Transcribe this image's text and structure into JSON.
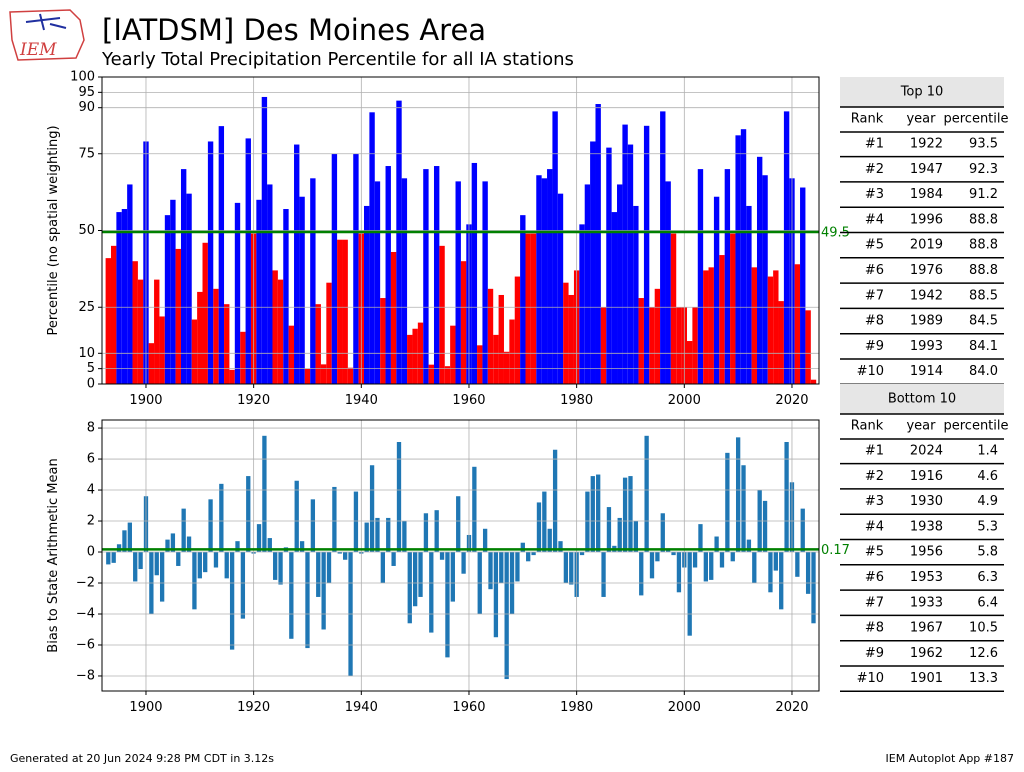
{
  "header": {
    "title": "[IATDSM] Des Moines Area",
    "subtitle": "Yearly Total Precipitation Percentile for all IA stations",
    "logo_text": "IEM"
  },
  "footer": {
    "left": "Generated at 20 Jun 2024 9:28 PM CDT in 3.12s",
    "right": "IEM Autoplot App #187"
  },
  "chart_data": [
    {
      "type": "bar",
      "ylabel": "Percentile (no spatial weighting)",
      "x": [
        1893,
        1894,
        1895,
        1896,
        1897,
        1898,
        1899,
        1900,
        1901,
        1902,
        1903,
        1904,
        1905,
        1906,
        1907,
        1908,
        1909,
        1910,
        1911,
        1912,
        1913,
        1914,
        1915,
        1916,
        1917,
        1918,
        1919,
        1920,
        1921,
        1922,
        1923,
        1924,
        1925,
        1926,
        1927,
        1928,
        1929,
        1930,
        1931,
        1932,
        1933,
        1934,
        1935,
        1936,
        1937,
        1938,
        1939,
        1940,
        1941,
        1942,
        1943,
        1944,
        1945,
        1946,
        1947,
        1948,
        1949,
        1950,
        1951,
        1952,
        1953,
        1954,
        1955,
        1956,
        1957,
        1958,
        1959,
        1960,
        1961,
        1962,
        1963,
        1964,
        1965,
        1966,
        1967,
        1968,
        1969,
        1970,
        1971,
        1972,
        1973,
        1974,
        1975,
        1976,
        1977,
        1978,
        1979,
        1980,
        1981,
        1982,
        1983,
        1984,
        1985,
        1986,
        1987,
        1988,
        1989,
        1990,
        1991,
        1992,
        1993,
        1994,
        1995,
        1996,
        1997,
        1998,
        1999,
        2000,
        2001,
        2002,
        2003,
        2004,
        2005,
        2006,
        2007,
        2008,
        2009,
        2010,
        2011,
        2012,
        2013,
        2014,
        2015,
        2016,
        2017,
        2018,
        2019,
        2020,
        2021,
        2022,
        2023,
        2024
      ],
      "values": [
        41,
        45,
        56,
        57,
        65,
        40,
        34,
        79,
        13.3,
        34,
        22,
        55,
        60,
        44,
        70,
        62,
        21,
        30,
        46,
        79,
        31,
        84.0,
        26,
        4.6,
        59,
        17,
        80,
        49,
        60,
        93.5,
        65,
        37,
        34,
        57,
        19,
        78,
        61,
        4.9,
        67,
        26,
        6.4,
        33,
        75,
        47,
        47,
        5.3,
        75,
        49,
        58,
        88.5,
        66,
        28,
        71,
        43,
        92.3,
        67,
        16,
        18,
        20,
        70,
        6.3,
        71,
        45,
        5.8,
        19,
        66,
        40,
        52,
        72,
        12.6,
        66,
        31,
        16,
        29,
        10.5,
        21,
        35,
        55,
        49,
        49,
        68,
        67,
        70,
        88.8,
        62,
        33,
        29,
        37,
        52,
        65,
        79,
        91.2,
        25,
        77,
        56,
        65,
        84.5,
        78,
        58,
        28,
        84.1,
        25,
        31,
        88.8,
        66,
        49,
        25,
        25,
        14,
        25,
        70,
        37,
        38,
        61,
        42,
        70,
        49,
        81,
        83,
        58,
        38,
        74,
        68,
        35,
        37,
        27,
        88.8,
        67,
        39,
        64,
        24,
        1.4
      ],
      "above_color": "#0000ff",
      "below_color": "#ff0000",
      "mean": 49.5,
      "mean_label": "49.5",
      "mean_color": "#008000",
      "xlim": [
        1891.83,
        2025.02
      ],
      "xticks": [
        1900,
        1920,
        1940,
        1960,
        1980,
        2000,
        2020
      ],
      "ylim": [
        0,
        100
      ],
      "yticks": [
        0,
        5,
        10,
        25,
        50,
        75,
        90,
        95,
        100
      ],
      "grid": true
    },
    {
      "type": "bar",
      "ylabel": "Bias to State Arithmetic Mean",
      "x": [
        1893,
        1894,
        1895,
        1896,
        1897,
        1898,
        1899,
        1900,
        1901,
        1902,
        1903,
        1904,
        1905,
        1906,
        1907,
        1908,
        1909,
        1910,
        1911,
        1912,
        1913,
        1914,
        1915,
        1916,
        1917,
        1918,
        1919,
        1920,
        1921,
        1922,
        1923,
        1924,
        1925,
        1926,
        1927,
        1928,
        1929,
        1930,
        1931,
        1932,
        1933,
        1934,
        1935,
        1936,
        1937,
        1938,
        1939,
        1940,
        1941,
        1942,
        1943,
        1944,
        1945,
        1946,
        1947,
        1948,
        1949,
        1950,
        1951,
        1952,
        1953,
        1954,
        1955,
        1956,
        1957,
        1958,
        1959,
        1960,
        1961,
        1962,
        1963,
        1964,
        1965,
        1966,
        1967,
        1968,
        1969,
        1970,
        1971,
        1972,
        1973,
        1974,
        1975,
        1976,
        1977,
        1978,
        1979,
        1980,
        1981,
        1982,
        1983,
        1984,
        1985,
        1986,
        1987,
        1988,
        1989,
        1990,
        1991,
        1992,
        1993,
        1994,
        1995,
        1996,
        1997,
        1998,
        1999,
        2000,
        2001,
        2002,
        2003,
        2004,
        2005,
        2006,
        2007,
        2008,
        2009,
        2010,
        2011,
        2012,
        2013,
        2014,
        2015,
        2016,
        2017,
        2018,
        2019,
        2020,
        2021,
        2022,
        2023,
        2024
      ],
      "values": [
        -0.8,
        -0.7,
        0.5,
        1.4,
        1.9,
        -1.9,
        -1.1,
        3.6,
        -4.0,
        -1.5,
        -3.2,
        0.8,
        1.2,
        -0.9,
        2.8,
        1.0,
        -3.7,
        -1.7,
        -1.3,
        3.4,
        -1.0,
        4.4,
        -1.7,
        -6.3,
        0.7,
        -4.3,
        4.9,
        -0.1,
        1.8,
        7.5,
        0.9,
        -1.8,
        -2.1,
        0.3,
        -5.6,
        4.6,
        0.7,
        -6.2,
        3.4,
        -2.9,
        -5.0,
        -2.0,
        4.2,
        -0.1,
        -0.5,
        -8.0,
        3.9,
        -0.1,
        1.9,
        5.6,
        2.2,
        -2.0,
        2.2,
        -0.9,
        7.1,
        2.0,
        -4.6,
        -3.5,
        -2.9,
        2.5,
        -5.2,
        2.7,
        -0.5,
        -6.8,
        -3.2,
        3.6,
        -1.4,
        1.1,
        5.5,
        -4.0,
        1.5,
        -2.4,
        -5.5,
        -2.0,
        -8.2,
        -4.0,
        -1.9,
        0.6,
        -0.6,
        -0.2,
        3.2,
        3.9,
        1.5,
        6.6,
        0.7,
        -2.0,
        -2.1,
        -2.9,
        -0.2,
        3.9,
        4.9,
        5.0,
        -2.9,
        2.9,
        0.4,
        2.2,
        4.8,
        4.9,
        2.0,
        -2.8,
        7.5,
        -1.7,
        -0.6,
        2.5,
        0.2,
        -0.2,
        -2.6,
        -1.0,
        -5.4,
        -1.0,
        1.8,
        -1.9,
        -1.8,
        1.0,
        -1.0,
        6.4,
        -0.6,
        7.4,
        5.6,
        0.8,
        -2.0,
        4.0,
        3.3,
        -2.6,
        -1.2,
        -3.7,
        7.1,
        4.5,
        -1.6,
        2.8,
        -2.7,
        -4.6
      ],
      "color": "#1f77b4",
      "mean": 0.17,
      "mean_label": "0.17",
      "mean_color": "#008000",
      "xlim": [
        1891.83,
        2025.02
      ],
      "xticks": [
        1900,
        1920,
        1940,
        1960,
        1980,
        2000,
        2020
      ],
      "ylim": [
        -8.97,
        8.52
      ],
      "yticks": [
        {
          "value": -8,
          "label": "−8"
        },
        {
          "value": -6,
          "label": "−6"
        },
        {
          "value": -4,
          "label": "−4"
        },
        {
          "value": -2,
          "label": "−2"
        },
        0,
        2,
        4,
        6,
        8
      ],
      "grid": true
    }
  ],
  "tables": [
    {
      "title": "Top 10",
      "columns": [
        "Rank",
        "year",
        "percentile"
      ],
      "rows": [
        [
          "#1",
          1922,
          93.5
        ],
        [
          "#2",
          1947,
          92.3
        ],
        [
          "#3",
          1984,
          91.2
        ],
        [
          "#4",
          1996,
          88.8
        ],
        [
          "#5",
          2019,
          88.8
        ],
        [
          "#6",
          1976,
          88.8
        ],
        [
          "#7",
          1942,
          88.5
        ],
        [
          "#8",
          1989,
          84.5
        ],
        [
          "#9",
          1993,
          84.1
        ],
        [
          "#10",
          1914,
          "84.0"
        ]
      ]
    },
    {
      "title": "Bottom 10",
      "columns": [
        "Rank",
        "year",
        "percentile"
      ],
      "rows": [
        [
          "#1",
          2024,
          1.4
        ],
        [
          "#2",
          1916,
          4.6
        ],
        [
          "#3",
          1930,
          4.9
        ],
        [
          "#4",
          1938,
          5.3
        ],
        [
          "#5",
          1956,
          5.8
        ],
        [
          "#6",
          1953,
          6.3
        ],
        [
          "#7",
          1933,
          6.4
        ],
        [
          "#8",
          1967,
          10.5
        ],
        [
          "#9",
          1962,
          12.6
        ],
        [
          "#10",
          1901,
          13.3
        ]
      ]
    }
  ]
}
